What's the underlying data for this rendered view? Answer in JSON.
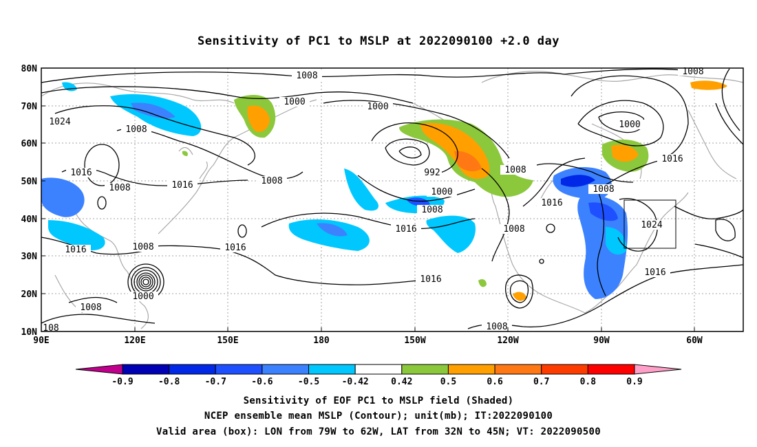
{
  "title": "Sensitivity of PC1 to MSLP at 2022090100 +2.0 day",
  "lat_ticks": [
    "80N",
    "70N",
    "60N",
    "50N",
    "40N",
    "30N",
    "20N",
    "10N"
  ],
  "lon_ticks": [
    "90E",
    "120E",
    "150E",
    "180",
    "150W",
    "120W",
    "90W",
    "60W"
  ],
  "contour_labels": [
    "1008",
    "1008",
    "1024",
    "1000",
    "1000",
    "1000",
    "1016",
    "1008",
    "1016",
    "1008",
    "992",
    "1008",
    "1000",
    "1008",
    "1016",
    "1008",
    "1016",
    "1016",
    "1008",
    "1016",
    "1024",
    "1016",
    "1000",
    "1008",
    "1016",
    "108",
    "1008"
  ],
  "colorbar": {
    "min_labels": [
      "-0.9",
      "-0.8",
      "-0.7",
      "-0.6",
      "-0.5",
      "-0.42",
      "0.42",
      "0.5",
      "0.6",
      "0.7",
      "0.8",
      "0.9"
    ],
    "colors": [
      "#c0008c",
      "#0000b4",
      "#0028e6",
      "#1e50ff",
      "#3c82ff",
      "#00c8ff",
      "#ffffff",
      "#8cc83c",
      "#ffa000",
      "#ff7814",
      "#ff3c00",
      "#ff0000",
      "#ffa0c8"
    ]
  },
  "captions": {
    "line1": "Sensitivity of EOF PC1 to MSLP field (Shaded)",
    "line2": "NCEP ensemble mean MSLP (Contour); unit(mb); IT:2022090100",
    "line3": "Valid area (box): LON from 79W to 62W, LAT from 32N to 45N; VT: 2022090500"
  }
}
